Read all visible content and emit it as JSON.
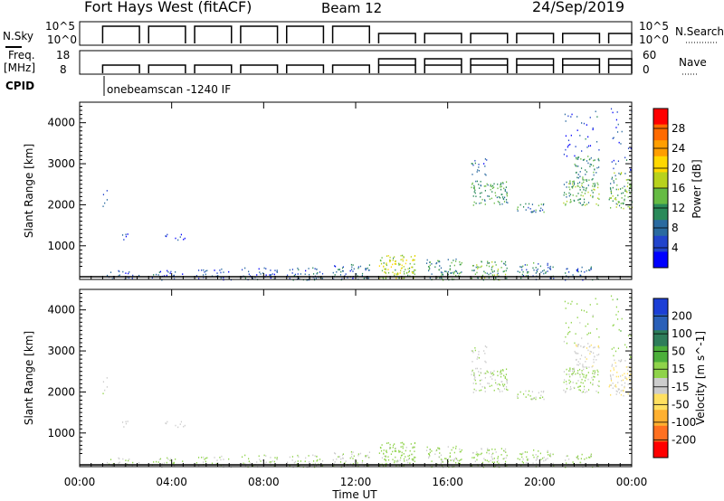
{
  "header": {
    "title": "Fort Hays West (fitACF)",
    "beam": "Beam 12",
    "date": "24/Sep/2019"
  },
  "top_panels": {
    "nsky_label": "N.Sky",
    "nsearch_label": "N.Search",
    "nsky_ticks": [
      "10^5",
      "10^0"
    ],
    "nsearch_ticks": [
      "10^5",
      "10^0"
    ],
    "freq_label": "Freq.",
    "freq_unit": "[MHz]",
    "freq_ticks": [
      "18",
      "8"
    ],
    "nave_label": "Nave",
    "nave_ticks": [
      "60",
      "0"
    ],
    "cpid_label": "CPID",
    "cpid_value": "onebeamscan -1240 IF"
  },
  "power_colorbar": {
    "label": "Power [dB]",
    "ticks": [
      "28",
      "24",
      "20",
      "16",
      "12",
      "8",
      "4"
    ],
    "colors": [
      "#ff0000",
      "#ff6a00",
      "#ff9e00",
      "#ffd800",
      "#b8d21c",
      "#66bb44",
      "#2a8a5a",
      "#2a6aa0",
      "#2244cc",
      "#0000ff"
    ]
  },
  "velocity_colorbar": {
    "label": "Velocity [m s^-1]",
    "ticks": [
      "200",
      "100",
      "50",
      "15",
      "-15",
      "-50",
      "-100",
      "-200"
    ],
    "colors": [
      "#1c3fd6",
      "#2a60b8",
      "#2e7d5a",
      "#4caf3a",
      "#8fd34a",
      "#cccccc",
      "#ffe060",
      "#ffb030",
      "#ff7020",
      "#ff0000"
    ]
  },
  "axes": {
    "ylabel": "Slant Range [km]",
    "yticks": [
      "4000",
      "3000",
      "2000",
      "1000"
    ],
    "xticks": [
      "00:00",
      "04:00",
      "08:00",
      "12:00",
      "16:00",
      "20:00",
      "00:00"
    ],
    "xlabel": "Time UT"
  },
  "chart_data": {
    "type": "heatmap",
    "x_unit": "hours UT",
    "x_range": [
      0,
      24
    ],
    "y_range_km": [
      180,
      4500
    ],
    "scan_blocks": [
      {
        "start_h": 1.0,
        "end_h": 2.6,
        "mode": "low"
      },
      {
        "start_h": 3.0,
        "end_h": 4.6,
        "mode": "low"
      },
      {
        "start_h": 5.0,
        "end_h": 6.6,
        "mode": "low"
      },
      {
        "start_h": 7.0,
        "end_h": 8.6,
        "mode": "low"
      },
      {
        "start_h": 9.0,
        "end_h": 10.6,
        "mode": "low"
      },
      {
        "start_h": 11.0,
        "end_h": 12.6,
        "mode": "low"
      },
      {
        "start_h": 13.0,
        "end_h": 14.6,
        "mode": "high"
      },
      {
        "start_h": 15.0,
        "end_h": 16.6,
        "mode": "high"
      },
      {
        "start_h": 17.0,
        "end_h": 18.6,
        "mode": "high"
      },
      {
        "start_h": 19.0,
        "end_h": 20.6,
        "mode": "high"
      },
      {
        "start_h": 21.0,
        "end_h": 22.6,
        "mode": "high"
      },
      {
        "start_h": 23.0,
        "end_h": 24.0,
        "mode": "high"
      }
    ],
    "echo_patches": [
      {
        "t0": 1.0,
        "t1": 2.6,
        "r0": 180,
        "r1": 420,
        "power_db": 6,
        "velocity": 0,
        "density": 0.35
      },
      {
        "t0": 3.0,
        "t1": 4.6,
        "r0": 180,
        "r1": 420,
        "power_db": 6,
        "velocity": 0,
        "density": 0.35
      },
      {
        "t0": 5.0,
        "t1": 6.6,
        "r0": 180,
        "r1": 450,
        "power_db": 6,
        "velocity": 0,
        "density": 0.4
      },
      {
        "t0": 7.0,
        "t1": 8.6,
        "r0": 180,
        "r1": 480,
        "power_db": 7,
        "velocity": 0,
        "density": 0.5
      },
      {
        "t0": 9.0,
        "t1": 10.6,
        "r0": 180,
        "r1": 500,
        "power_db": 8,
        "velocity": 0,
        "density": 0.55
      },
      {
        "t0": 11.0,
        "t1": 12.6,
        "r0": 180,
        "r1": 560,
        "power_db": 8,
        "velocity": 0,
        "density": 0.55
      },
      {
        "t0": 13.0,
        "t1": 14.6,
        "r0": 180,
        "r1": 800,
        "power_db": 18,
        "velocity": 20,
        "density": 0.75
      },
      {
        "t0": 15.0,
        "t1": 16.6,
        "r0": 180,
        "r1": 700,
        "power_db": 12,
        "velocity": 10,
        "density": 0.6
      },
      {
        "t0": 17.0,
        "t1": 18.6,
        "r0": 180,
        "r1": 650,
        "power_db": 14,
        "velocity": 10,
        "density": 0.6
      },
      {
        "t0": 19.0,
        "t1": 20.6,
        "r0": 180,
        "r1": 600,
        "power_db": 10,
        "velocity": 5,
        "density": 0.5
      },
      {
        "t0": 21.0,
        "t1": 22.6,
        "r0": 180,
        "r1": 500,
        "power_db": 8,
        "velocity": 0,
        "density": 0.4
      },
      {
        "t0": 1.0,
        "t1": 1.2,
        "r0": 1950,
        "r1": 2400,
        "power_db": 6,
        "velocity": 0,
        "density": 0.4
      },
      {
        "t0": 1.8,
        "t1": 2.2,
        "r0": 1150,
        "r1": 1300,
        "power_db": 5,
        "velocity": -30,
        "density": 0.5
      },
      {
        "t0": 3.6,
        "t1": 4.6,
        "r0": 1150,
        "r1": 1300,
        "power_db": 5,
        "velocity": -30,
        "density": 0.4
      },
      {
        "t0": 17.0,
        "t1": 18.6,
        "r0": 2000,
        "r1": 2600,
        "power_db": 12,
        "velocity": 5,
        "density": 0.6
      },
      {
        "t0": 17.0,
        "t1": 17.7,
        "r0": 2700,
        "r1": 3150,
        "power_db": 8,
        "velocity": -20,
        "density": 0.35
      },
      {
        "t0": 19.0,
        "t1": 20.2,
        "r0": 1800,
        "r1": 2050,
        "power_db": 10,
        "velocity": 5,
        "density": 0.6
      },
      {
        "t0": 21.0,
        "t1": 22.6,
        "r0": 2000,
        "r1": 2600,
        "power_db": 14,
        "velocity": 10,
        "density": 0.65
      },
      {
        "t0": 21.5,
        "t1": 22.6,
        "r0": 2600,
        "r1": 3200,
        "power_db": 12,
        "velocity": -40,
        "density": 0.55
      },
      {
        "t0": 23.0,
        "t1": 24.0,
        "r0": 1900,
        "r1": 2800,
        "power_db": 14,
        "velocity": -60,
        "density": 0.6
      },
      {
        "t0": 23.0,
        "t1": 24.0,
        "r0": 2800,
        "r1": 4400,
        "power_db": 6,
        "velocity": 30,
        "density": 0.1
      },
      {
        "t0": 21.0,
        "t1": 22.6,
        "r0": 3200,
        "r1": 4400,
        "power_db": 6,
        "velocity": 20,
        "density": 0.12
      }
    ]
  }
}
